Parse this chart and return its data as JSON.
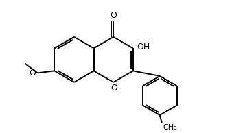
{
  "title": "",
  "background_color": "#ffffff",
  "bond_color": "#000000",
  "text_color": "#000000",
  "figsize": [
    3.54,
    1.94
  ],
  "dpi": 100,
  "bond_lw": 1.4,
  "ring_r": 1.0,
  "xlim": [
    -2.5,
    7.5
  ],
  "ylim": [
    -3.2,
    2.8
  ]
}
